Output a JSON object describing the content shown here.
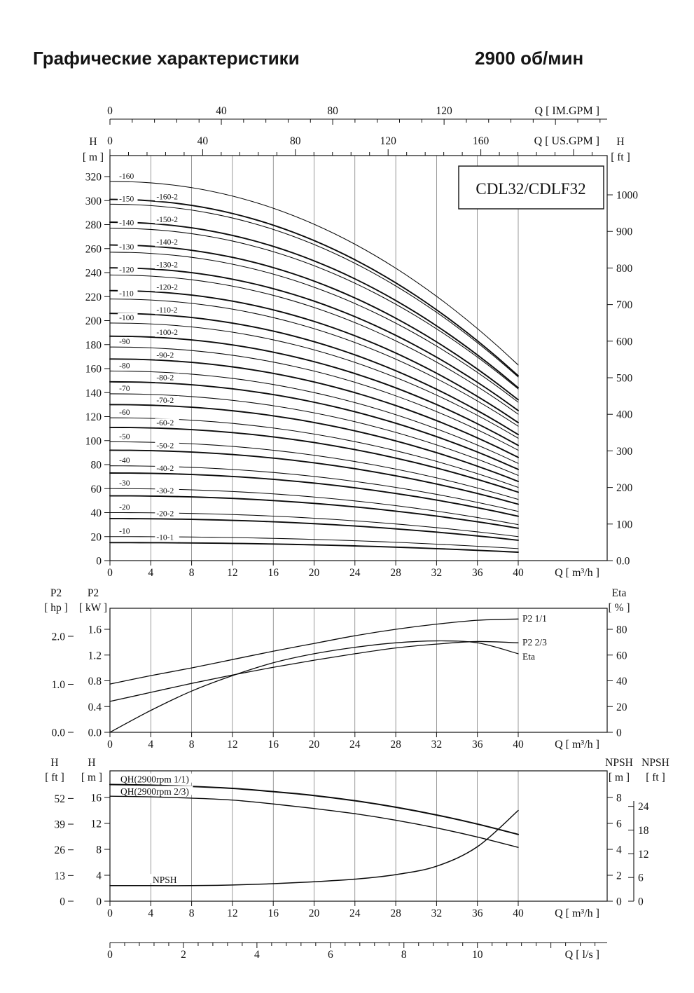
{
  "page": {
    "title_left": "Графические характеристики",
    "title_right": "2900 об/мин"
  },
  "chart_data": [
    {
      "id": "qh-multistage",
      "type": "line",
      "title": "CDL32/CDLF32",
      "x_axis_bottom": {
        "title": "Q [ m³/h ]",
        "ticks": [
          0,
          4,
          8,
          12,
          16,
          20,
          24,
          28,
          32,
          36,
          40
        ],
        "range": [
          0,
          40
        ]
      },
      "x_axis_top_outer": {
        "title": "Q [ IM.GPM ]",
        "ticks": [
          0,
          40,
          80,
          120
        ]
      },
      "x_axis_top_inner": {
        "title": "Q [ US.GPM ]",
        "ticks": [
          0,
          40,
          80,
          120,
          160
        ]
      },
      "y_axis_left": {
        "name": "H",
        "unit": "[ m ]",
        "ticks": [
          0,
          20,
          40,
          60,
          80,
          100,
          120,
          140,
          160,
          180,
          200,
          220,
          240,
          260,
          280,
          300,
          320
        ],
        "range": [
          0,
          337
        ]
      },
      "y_axis_right": {
        "name": "H",
        "unit": "[ ft ]",
        "ticks": [
          "0.0",
          "100",
          "200",
          "300",
          "400",
          "500",
          "600",
          "700",
          "800",
          "900",
          "1000"
        ]
      },
      "series_value_meaning": {
        "h0": "head in m at Q=0",
        "h40": "head in m at Q=40 m³/h"
      },
      "series": [
        {
          "label": "-160",
          "h0": 316,
          "h40": 163,
          "bold": false
        },
        {
          "label": "-160-2",
          "h0": 301,
          "h40": 154,
          "bold": true
        },
        {
          "label": "-150",
          "h0": 297,
          "h40": 153,
          "bold": false
        },
        {
          "label": "-150-2",
          "h0": 282,
          "h40": 144,
          "bold": true
        },
        {
          "label": "-140",
          "h0": 277,
          "h40": 143,
          "bold": false
        },
        {
          "label": "-140-2",
          "h0": 263,
          "h40": 134,
          "bold": true
        },
        {
          "label": "-130",
          "h0": 257,
          "h40": 132,
          "bold": false
        },
        {
          "label": "-130-2",
          "h0": 244,
          "h40": 125,
          "bold": true
        },
        {
          "label": "-120",
          "h0": 238,
          "h40": 122,
          "bold": false
        },
        {
          "label": "-120-2",
          "h0": 225,
          "h40": 115,
          "bold": true
        },
        {
          "label": "-110",
          "h0": 218,
          "h40": 112,
          "bold": false
        },
        {
          "label": "-110-2",
          "h0": 206,
          "h40": 105,
          "bold": true
        },
        {
          "label": "-100",
          "h0": 198,
          "h40": 102,
          "bold": false
        },
        {
          "label": "-100-2",
          "h0": 187,
          "h40": 96,
          "bold": true
        },
        {
          "label": "-90",
          "h0": 178,
          "h40": 92,
          "bold": false
        },
        {
          "label": "-90-2",
          "h0": 168,
          "h40": 86,
          "bold": true
        },
        {
          "label": "-80",
          "h0": 158,
          "h40": 81,
          "bold": false
        },
        {
          "label": "-80-2",
          "h0": 149,
          "h40": 76,
          "bold": true
        },
        {
          "label": "-70",
          "h0": 139,
          "h40": 71,
          "bold": false
        },
        {
          "label": "-70-2",
          "h0": 130,
          "h40": 66,
          "bold": true
        },
        {
          "label": "-60",
          "h0": 119,
          "h40": 61,
          "bold": false
        },
        {
          "label": "-60-2",
          "h0": 111,
          "h40": 57,
          "bold": true
        },
        {
          "label": "-50",
          "h0": 99,
          "h40": 51,
          "bold": false
        },
        {
          "label": "-50-2",
          "h0": 92,
          "h40": 47,
          "bold": true
        },
        {
          "label": "-40",
          "h0": 79,
          "h40": 41,
          "bold": false
        },
        {
          "label": "-40-2",
          "h0": 73,
          "h40": 37,
          "bold": true
        },
        {
          "label": "-30",
          "h0": 60,
          "h40": 30,
          "bold": false
        },
        {
          "label": "-30-2",
          "h0": 54,
          "h40": 27,
          "bold": true
        },
        {
          "label": "-20",
          "h0": 40,
          "h40": 20,
          "bold": false
        },
        {
          "label": "-20-2",
          "h0": 35,
          "h40": 17,
          "bold": true
        },
        {
          "label": "-10",
          "h0": 20,
          "h40": 10,
          "bold": false
        },
        {
          "label": "-10-1",
          "h0": 15,
          "h40": 7,
          "bold": true
        }
      ]
    },
    {
      "id": "power-efficiency",
      "type": "line",
      "x_axis_bottom": {
        "title": "Q [ m³/h ]",
        "ticks": [
          0,
          4,
          8,
          12,
          16,
          20,
          24,
          28,
          32,
          36,
          40
        ],
        "range": [
          0,
          40
        ]
      },
      "y_axis_left_outer": {
        "name": "P2",
        "unit": "[ hp ]",
        "ticks": [
          "0.0",
          "1.0",
          "2.0"
        ]
      },
      "y_axis_left_inner": {
        "name": "P2",
        "unit": "[ kW ]",
        "ticks": [
          "0.0",
          "0.4",
          "0.8",
          "1.2",
          "1.6"
        ]
      },
      "y_axis_right": {
        "name": "Eta",
        "unit": "[ % ]",
        "ticks": [
          0,
          20,
          40,
          60,
          80
        ]
      },
      "series": [
        {
          "label": "P2 1/1",
          "unit": "kW",
          "x": [
            0,
            4,
            8,
            12,
            16,
            20,
            24,
            28,
            32,
            36,
            40
          ],
          "y": [
            0.75,
            0.88,
            1.0,
            1.13,
            1.26,
            1.38,
            1.5,
            1.6,
            1.68,
            1.74,
            1.76
          ]
        },
        {
          "label": "P2 2/3",
          "unit": "kW",
          "x": [
            0,
            4,
            8,
            12,
            16,
            20,
            24,
            28,
            32,
            36,
            40
          ],
          "y": [
            0.48,
            0.62,
            0.76,
            0.89,
            1.01,
            1.12,
            1.22,
            1.31,
            1.37,
            1.41,
            1.39
          ]
        },
        {
          "label": "Eta",
          "unit": "%",
          "x": [
            0,
            4,
            8,
            12,
            16,
            20,
            24,
            28,
            32,
            36,
            40
          ],
          "y": [
            0,
            17,
            32,
            44,
            54,
            61,
            66,
            69.5,
            71,
            69.5,
            61
          ]
        }
      ]
    },
    {
      "id": "qh-single-stage-npsh",
      "type": "line",
      "x_axis_bottom": {
        "title": "Q [ m³/h ]",
        "ticks": [
          0,
          4,
          8,
          12,
          16,
          20,
          24,
          28,
          32,
          36,
          40
        ],
        "range": [
          0,
          40
        ]
      },
      "x_axis_ls": {
        "title": "Q [ l/s ]",
        "ticks": [
          0,
          2,
          4,
          6,
          8,
          10
        ]
      },
      "y_axis_left_outer": {
        "name": "H",
        "unit": "[ ft ]",
        "ticks": [
          0,
          13,
          26,
          39,
          52
        ]
      },
      "y_axis_left_inner": {
        "name": "H",
        "unit": "[ m ]",
        "ticks": [
          0,
          4,
          8,
          12,
          16
        ]
      },
      "y_axis_right_inner": {
        "name": "NPSH",
        "unit": "[ m ]",
        "ticks": [
          0,
          2,
          4,
          6,
          8
        ]
      },
      "y_axis_right_outer": {
        "name": "NPSH",
        "unit": "[ ft ]",
        "ticks": [
          0,
          6,
          12,
          18,
          24
        ]
      },
      "series": [
        {
          "label": "QH(2900rpm 1/1)",
          "unit": "m",
          "x": [
            0,
            4,
            8,
            12,
            16,
            20,
            24,
            28,
            32,
            36,
            40
          ],
          "y": [
            18.0,
            17.9,
            17.7,
            17.4,
            16.9,
            16.3,
            15.5,
            14.5,
            13.3,
            11.9,
            10.3
          ]
        },
        {
          "label": "QH(2900rpm 2/3)",
          "unit": "m",
          "x": [
            0,
            4,
            8,
            12,
            16,
            20,
            24,
            28,
            32,
            36,
            40
          ],
          "y": [
            16.2,
            16.1,
            15.9,
            15.6,
            15.0,
            14.3,
            13.5,
            12.5,
            11.3,
            9.9,
            8.3
          ]
        },
        {
          "label": "NPSH",
          "unit": "npsh-m",
          "x": [
            0,
            4,
            8,
            12,
            16,
            20,
            24,
            28,
            32,
            36,
            40
          ],
          "y": [
            1.2,
            1.2,
            1.2,
            1.25,
            1.35,
            1.5,
            1.7,
            2.05,
            2.7,
            4.2,
            7.0
          ]
        }
      ]
    }
  ]
}
